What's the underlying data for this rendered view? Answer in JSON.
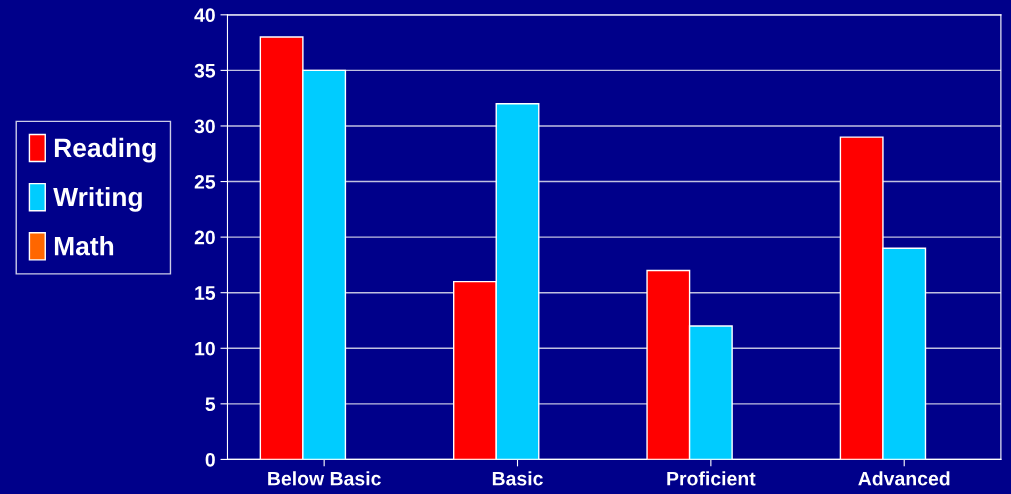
{
  "chart_data": {
    "type": "bar",
    "categories": [
      "Below Basic",
      "Basic",
      "Proficient",
      "Advanced"
    ],
    "series": [
      {
        "name": "Reading",
        "color": "#ff0000",
        "values": [
          38,
          16,
          17,
          29
        ]
      },
      {
        "name": "Writing",
        "color": "#00ccff",
        "values": [
          35,
          32,
          12,
          19
        ]
      },
      {
        "name": "Math",
        "color": "#ff6600",
        "values": [
          null,
          null,
          null,
          null
        ]
      }
    ],
    "ylim": [
      0,
      40
    ],
    "yticks": [
      0,
      5,
      10,
      15,
      20,
      25,
      30,
      35,
      40
    ],
    "grid": "y",
    "legend": "left"
  }
}
